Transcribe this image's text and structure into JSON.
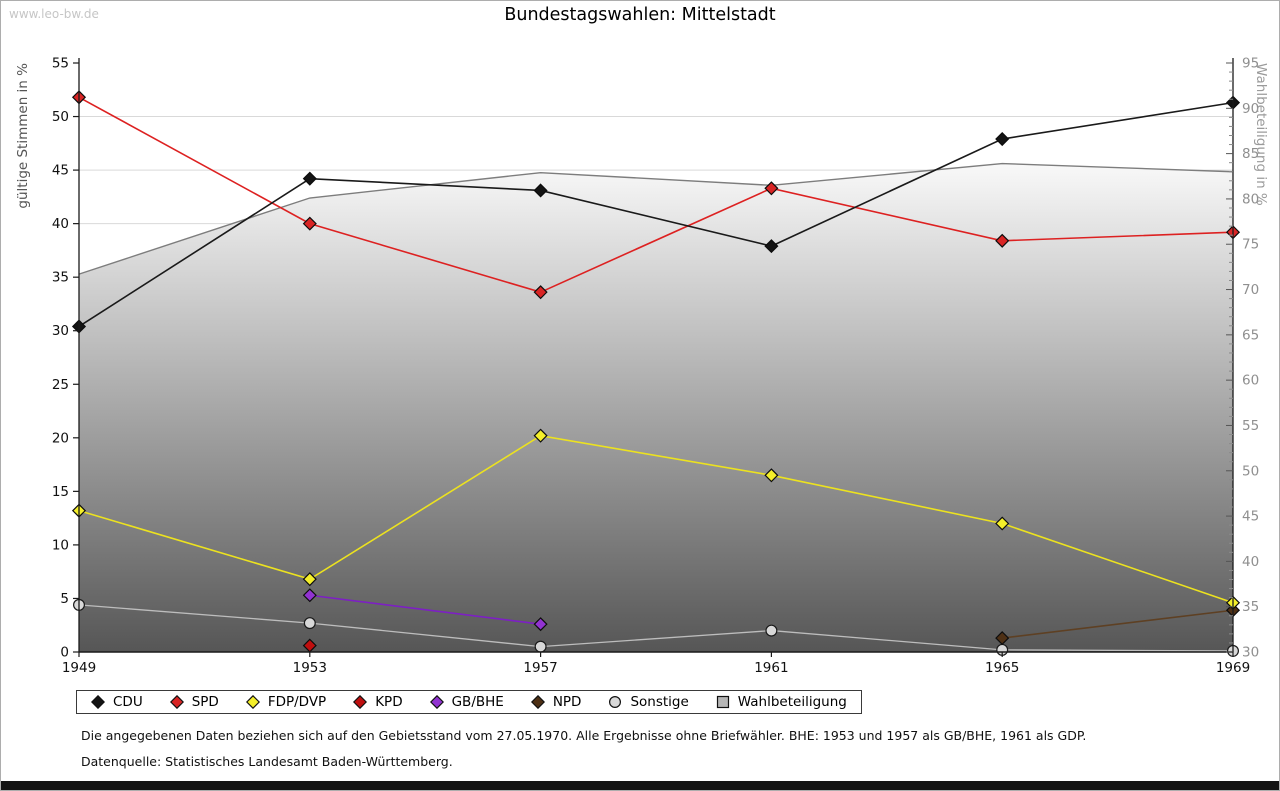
{
  "watermark": "www.leo-bw.de",
  "title": "Bundestagswahlen: Mittelstadt",
  "footnotes": {
    "line1": "Die angegebenen Daten beziehen sich auf den Gebietsstand vom 27.05.1970. Alle Ergebnisse ohne Briefwähler. BHE: 1953 und 1957 als GB/BHE, 1961 als GDP.",
    "line2": "Datenquelle: Statistisches Landesamt Baden-Württemberg."
  },
  "chart_data": {
    "type": "line",
    "title": "Bundestagswahlen: Mittelstadt",
    "x": [
      1949,
      1953,
      1957,
      1961,
      1965,
      1969
    ],
    "left_axis": {
      "label": "gültige Stimmen in %",
      "min": 0,
      "max": 55,
      "step": 5
    },
    "right_axis": {
      "label": "Wahlbeteiligung in %",
      "min": 30,
      "max": 95,
      "step": 5,
      "minor_step": 1
    },
    "grid": "horizontal-major",
    "legend_position": "bottom-left",
    "series": [
      {
        "name": "Wahlbeteiligung",
        "axis": "right",
        "kind": "area",
        "marker": "square",
        "line_color": "#7d7d7d",
        "marker_color": "#b6b6b6",
        "fill_top": "#fdfdfd",
        "fill_bottom": "#565656",
        "values": [
          71.7,
          80.1,
          82.9,
          81.5,
          83.9,
          83.0
        ]
      },
      {
        "name": "Sonstige",
        "axis": "left",
        "kind": "line",
        "marker": "circle",
        "line_color": "#bdbdbd",
        "marker_color": "#d8d8d8",
        "values": [
          4.4,
          2.7,
          0.5,
          2.0,
          0.2,
          0.1
        ]
      },
      {
        "name": "GB/BHE",
        "axis": "left",
        "kind": "line",
        "marker": "diamond",
        "line_color": "#7d1fc4",
        "marker_color": "#9233d1",
        "values": [
          null,
          5.3,
          2.6,
          null,
          null,
          null
        ]
      },
      {
        "name": "NPD",
        "axis": "left",
        "kind": "line",
        "marker": "diamond",
        "line_color": "#5e4023",
        "marker_color": "#4e3015",
        "values": [
          null,
          null,
          null,
          null,
          1.3,
          3.9
        ]
      },
      {
        "name": "KPD",
        "axis": "left",
        "kind": "line",
        "marker": "diamond",
        "line_color": "#bf0f0f",
        "marker_color": "#bf0f0f",
        "values": [
          null,
          0.6,
          null,
          null,
          null,
          null
        ]
      },
      {
        "name": "FDP/DVP",
        "axis": "left",
        "kind": "line",
        "marker": "diamond",
        "line_color": "#ece21f",
        "marker_color": "#f4ef2a",
        "values": [
          13.2,
          6.8,
          20.2,
          16.5,
          12.0,
          4.6
        ]
      },
      {
        "name": "SPD",
        "axis": "left",
        "kind": "line",
        "marker": "diamond",
        "line_color": "#dd2121",
        "marker_color": "#d92525",
        "values": [
          51.8,
          40.0,
          33.6,
          43.3,
          38.4,
          39.2
        ]
      },
      {
        "name": "CDU",
        "axis": "left",
        "kind": "line",
        "marker": "diamond",
        "line_color": "#1a1a1a",
        "marker_color": "#141414",
        "values": [
          30.4,
          44.2,
          43.1,
          37.9,
          47.9,
          51.3
        ]
      }
    ],
    "legend_order": [
      "CDU",
      "SPD",
      "FDP/DVP",
      "KPD",
      "GB/BHE",
      "NPD",
      "Sonstige",
      "Wahlbeteiligung"
    ]
  },
  "style": {
    "grid_color": "#d9d9d9",
    "axis_color": "#1a1a1a",
    "left_tick_label_color": "#111111",
    "right_tick_label_color": "#8f8f8f",
    "left_axis_title_color": "#555555",
    "right_axis_title_color": "#9a9a9a",
    "x_label_color": "#111111"
  }
}
